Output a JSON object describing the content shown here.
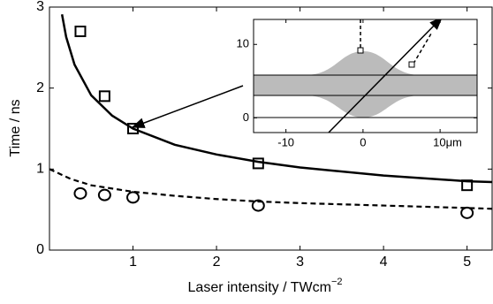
{
  "chart_data": [
    {
      "type": "scatter-line",
      "y_label": "Time / ns",
      "x_label": "Laser intensity / TWcm",
      "x_label_exponent": "−2",
      "xlim": [
        0,
        5.3
      ],
      "ylim": [
        0,
        3
      ],
      "xticks": [
        1,
        2,
        3,
        4,
        5
      ],
      "yticks": [
        0,
        1,
        2,
        3
      ],
      "color": "#000000",
      "series": [
        {
          "style": "square",
          "x": [
            0.37,
            0.66,
            1,
            2.5,
            5
          ],
          "values": [
            2.7,
            1.9,
            1.5,
            1.07,
            0.8
          ]
        },
        {
          "style": "circle",
          "x": [
            0.37,
            0.66,
            1,
            2.5,
            5
          ],
          "values": [
            0.7,
            0.68,
            0.65,
            0.55,
            0.46
          ]
        },
        {
          "style": "solid",
          "x": [
            0.15,
            0.2,
            0.3,
            0.5,
            0.75,
            1,
            1.5,
            2,
            2.5,
            3,
            4,
            5,
            5.3
          ],
          "values": [
            2.91,
            2.63,
            2.29,
            1.91,
            1.66,
            1.5,
            1.3,
            1.18,
            1.09,
            1.02,
            0.92,
            0.85,
            0.84
          ]
        },
        {
          "style": "dashed",
          "x": [
            0,
            0.25,
            0.5,
            1,
            1.5,
            2,
            2.5,
            3,
            4,
            5,
            5.3
          ],
          "values": [
            1.0,
            0.88,
            0.8,
            0.72,
            0.67,
            0.63,
            0.6,
            0.58,
            0.55,
            0.52,
            0.51
          ]
        }
      ]
    },
    {
      "type": "inset",
      "xlim": [
        -14.2,
        14.8
      ],
      "ylim": [
        -2,
        13.4
      ],
      "xticks": [
        -10,
        0,
        {
          "value": 10,
          "label": "10μm"
        }
      ],
      "yticks": [
        0,
        10
      ]
    }
  ]
}
